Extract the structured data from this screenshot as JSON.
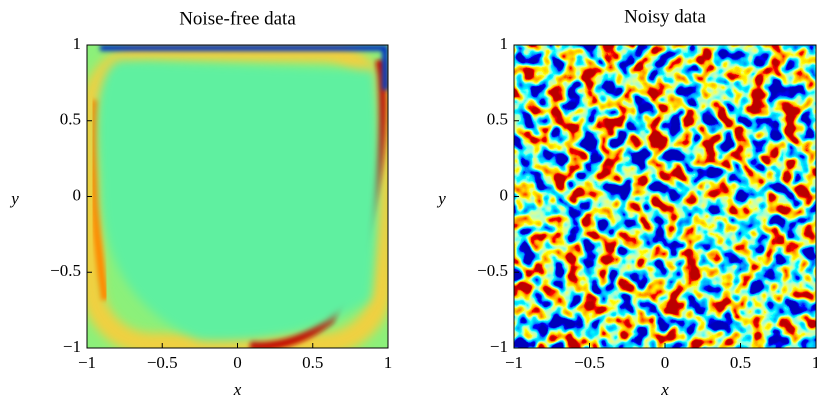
{
  "chart_data": [
    {
      "type": "heatmap",
      "title": "Noise-free data",
      "xlabel": "x",
      "ylabel": "y",
      "xlim": [
        -1,
        1
      ],
      "ylim": [
        -1,
        1
      ],
      "xticks": [
        {
          "value": -1,
          "label": "−1"
        },
        {
          "value": -0.5,
          "label": "−0.5"
        },
        0,
        0.5,
        1
      ],
      "yticks": [
        {
          "value": -1,
          "label": "−1"
        },
        {
          "value": -0.5,
          "label": "−0.5"
        },
        0,
        0.5,
        1
      ]
    },
    {
      "type": "heatmap",
      "title": "Noisy data",
      "xlabel": "x",
      "ylabel": "y",
      "xlim": [
        -1,
        1
      ],
      "ylim": [
        -1,
        1
      ],
      "xticks": [
        {
          "value": -1,
          "label": "−1"
        },
        {
          "value": -0.5,
          "label": "−0.5"
        },
        0,
        0.5,
        1
      ],
      "yticks": [
        {
          "value": -1,
          "label": "−1"
        },
        {
          "value": -0.5,
          "label": "−0.5"
        },
        0,
        0.5,
        1
      ]
    }
  ]
}
